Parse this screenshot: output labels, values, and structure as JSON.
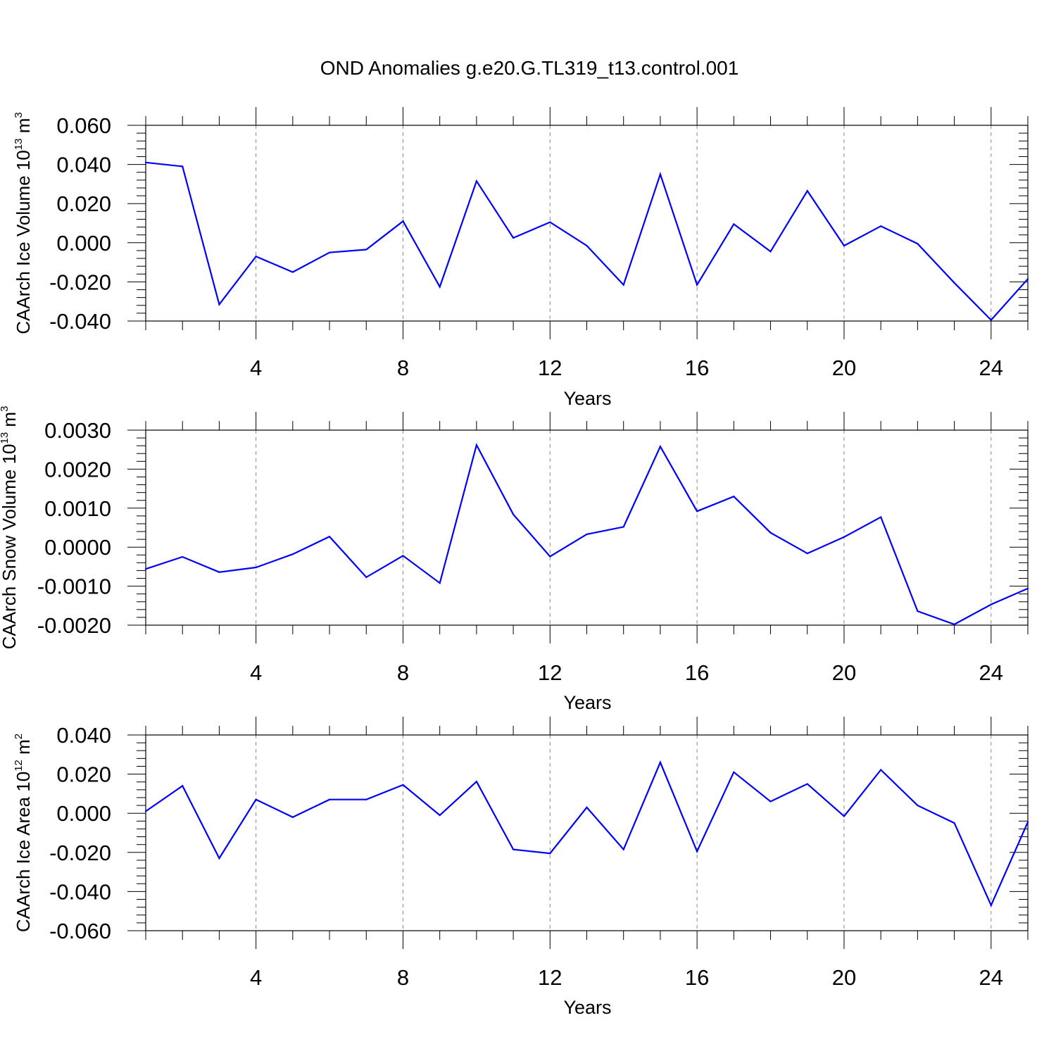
{
  "title": "OND Anomalies g.e20.G.TL319_t13.control.001",
  "chart_data": [
    {
      "type": "line",
      "ylabel": {
        "text": "CAArch Ice Volume 10",
        "exp": "13",
        "unit": " m",
        "unit_exp": "3"
      },
      "xlabel": "Years",
      "xlim": [
        1,
        25
      ],
      "ylim": [
        -0.04,
        0.06
      ],
      "xticks": [
        "4",
        "8",
        "12",
        "16",
        "20",
        "24"
      ],
      "yticks": [
        "0.060",
        "0.040",
        "0.020",
        "0.000",
        "-0.020",
        "-0.040"
      ],
      "line_color": "#0000ff",
      "grid": "vertical dashed",
      "x": [
        1,
        2,
        3,
        4,
        5,
        6,
        7,
        8,
        9,
        10,
        11,
        12,
        13,
        14,
        15,
        16,
        17,
        18,
        19,
        20,
        21,
        22,
        23,
        24,
        25
      ],
      "values": [
        0.041,
        0.039,
        -0.0315,
        -0.007,
        -0.015,
        -0.005,
        -0.0035,
        0.011,
        -0.0225,
        0.0315,
        0.0025,
        0.0105,
        -0.0015,
        -0.0215,
        0.035,
        -0.0215,
        0.0095,
        -0.0045,
        0.0265,
        -0.0015,
        0.0085,
        -0.0005,
        -0.0205,
        -0.0395,
        -0.0185
      ]
    },
    {
      "type": "line",
      "ylabel": {
        "text": "CAArch Snow Volume 10",
        "exp": "13",
        "unit": " m",
        "unit_exp": "3"
      },
      "xlabel": "Years",
      "xlim": [
        1,
        25
      ],
      "ylim": [
        -0.002,
        0.003
      ],
      "xticks": [
        "4",
        "8",
        "12",
        "16",
        "20",
        "24"
      ],
      "yticks": [
        "0.0030",
        "0.0020",
        "0.0010",
        "0.0000",
        "-0.0010",
        "-0.0020"
      ],
      "line_color": "#0000ff",
      "grid": "vertical dashed",
      "x": [
        1,
        2,
        3,
        4,
        5,
        6,
        7,
        8,
        9,
        10,
        11,
        12,
        13,
        14,
        15,
        16,
        17,
        18,
        19,
        20,
        21,
        22,
        23,
        24,
        25
      ],
      "values": [
        -0.00056,
        -0.00025,
        -0.00064,
        -0.00052,
        -0.00018,
        0.00027,
        -0.00077,
        -0.00022,
        -0.00092,
        0.00262,
        0.00084,
        -0.00024,
        0.00033,
        0.00052,
        0.00258,
        0.00092,
        0.0013,
        0.00037,
        -0.00016,
        0.00026,
        0.00077,
        -0.00164,
        -0.00198,
        -0.00147,
        -0.00106
      ]
    },
    {
      "type": "line",
      "ylabel": {
        "text": "CAArch Ice Area 10",
        "exp": "12",
        "unit": " m",
        "unit_exp": "2"
      },
      "xlabel": "Years",
      "xlim": [
        1,
        25
      ],
      "ylim": [
        -0.06,
        0.04
      ],
      "xticks": [
        "4",
        "8",
        "12",
        "16",
        "20",
        "24"
      ],
      "yticks": [
        "0.040",
        "0.020",
        "0.000",
        "-0.020",
        "-0.040",
        "-0.060"
      ],
      "line_color": "#0000ff",
      "grid": "vertical dashed",
      "x": [
        1,
        2,
        3,
        4,
        5,
        6,
        7,
        8,
        9,
        10,
        11,
        12,
        13,
        14,
        15,
        16,
        17,
        18,
        19,
        20,
        21,
        22,
        23,
        24,
        25
      ],
      "values": [
        0.001,
        0.014,
        -0.023,
        0.007,
        -0.002,
        0.007,
        0.007,
        0.0145,
        -0.001,
        0.0162,
        -0.0185,
        -0.0205,
        0.003,
        -0.0185,
        0.026,
        -0.0195,
        0.021,
        0.006,
        0.015,
        -0.0015,
        0.0222,
        0.004,
        -0.005,
        -0.047,
        -0.0045
      ]
    }
  ]
}
